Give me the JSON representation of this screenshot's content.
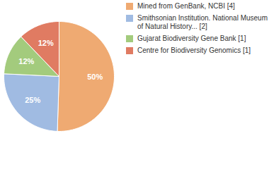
{
  "chart_data": {
    "type": "pie",
    "categories": [
      "Mined from GenBank, NCBI [4]",
      "Smithsonian Institution. National Museum of Natural History... [2]",
      "Gujarat Biodiversity Gene Bank [1]",
      "Centre for Biodiversity Genomics [1]"
    ],
    "values": [
      50,
      25,
      12,
      12
    ],
    "value_labels": [
      "50%",
      "25%",
      "12%",
      "12%"
    ],
    "colors": [
      "#efaa72",
      "#a0bbe2",
      "#a3cb7d",
      "#e07b62"
    ],
    "data_labels": true,
    "legend": "right"
  }
}
